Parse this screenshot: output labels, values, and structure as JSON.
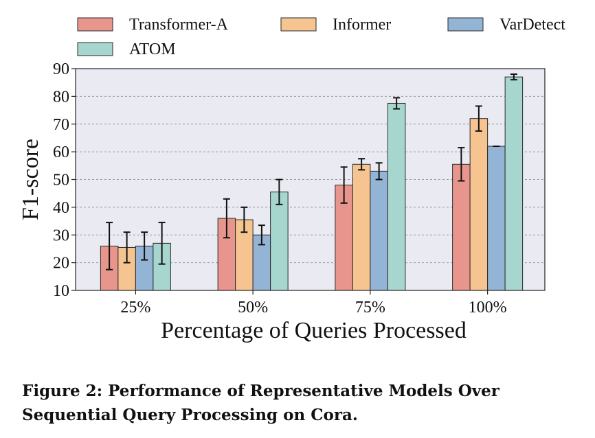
{
  "chart_data": {
    "type": "bar",
    "xlabel": "Percentage of Queries Processed",
    "ylabel": "F1-score",
    "ylim": [
      10,
      90
    ],
    "yticks": [
      "10",
      "20",
      "30",
      "40",
      "50",
      "60",
      "70",
      "80",
      "90"
    ],
    "categories": [
      "25%",
      "50%",
      "75%",
      "100%"
    ],
    "grid": "horizontal dashed",
    "legend_placement": "top",
    "series": [
      {
        "name": "Transformer-A",
        "color": "#E8968D",
        "values": [
          26,
          36,
          48,
          55.5
        ],
        "errors": [
          8.5,
          7,
          6.5,
          6
        ]
      },
      {
        "name": "Informer",
        "color": "#F5C490",
        "values": [
          25.5,
          35.5,
          55.5,
          72
        ],
        "errors": [
          5.5,
          4.5,
          2,
          4.5
        ]
      },
      {
        "name": "VarDetect",
        "color": "#94B4D5",
        "values": [
          26,
          30,
          53,
          62
        ],
        "errors": [
          5,
          3.5,
          3,
          0.2
        ]
      },
      {
        "name": "ATOM",
        "color": "#A6D6CE",
        "values": [
          27,
          45.5,
          77.5,
          87
        ],
        "errors": [
          7.5,
          4.5,
          2,
          1
        ]
      }
    ]
  },
  "caption": "Figure 2: Performance of Representative Models Over Sequential Query Processing on Cora."
}
